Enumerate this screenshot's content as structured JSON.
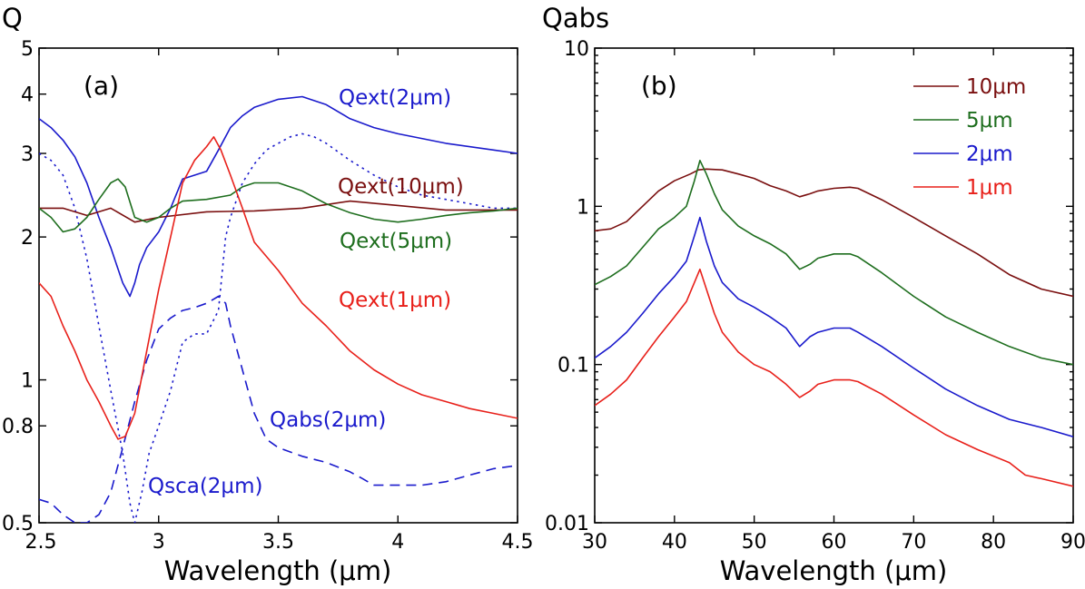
{
  "chart_data": [
    {
      "panel": "(a)",
      "type": "line",
      "ylabel": "Q",
      "xlabel": "Wavelength (μm)",
      "xlim": [
        2.5,
        4.5
      ],
      "ylim": [
        0.5,
        5
      ],
      "yscale": "log",
      "x_ticks": [
        2.5,
        3,
        3.5,
        4,
        4.5
      ],
      "x_tick_labels": [
        "2.5",
        "3",
        "3.5",
        "4",
        "4.5"
      ],
      "y_ticks": [
        0.5,
        0.8,
        1,
        2,
        3,
        4,
        5
      ],
      "y_tick_labels": [
        "0.5",
        "0.8",
        "1",
        "2",
        "3",
        "4",
        "5"
      ],
      "series": [
        {
          "name": "Qext(2μm)",
          "color": "#1a1acc",
          "dash": "solid",
          "x": [
            2.5,
            2.55,
            2.6,
            2.65,
            2.7,
            2.75,
            2.8,
            2.85,
            2.88,
            2.9,
            2.92,
            2.95,
            3.0,
            3.05,
            3.1,
            3.15,
            3.2,
            3.25,
            3.3,
            3.35,
            3.4,
            3.5,
            3.6,
            3.7,
            3.8,
            3.9,
            4.0,
            4.2,
            4.4,
            4.5
          ],
          "y": [
            3.55,
            3.4,
            3.2,
            2.95,
            2.6,
            2.2,
            1.9,
            1.6,
            1.5,
            1.6,
            1.75,
            1.9,
            2.05,
            2.3,
            2.65,
            2.7,
            2.75,
            3.05,
            3.4,
            3.6,
            3.75,
            3.9,
            3.95,
            3.8,
            3.55,
            3.4,
            3.3,
            3.15,
            3.05,
            3.0
          ]
        },
        {
          "name": "Qsca(2μm)",
          "color": "#1a1acc",
          "dash": "dotted",
          "x": [
            2.5,
            2.55,
            2.6,
            2.65,
            2.7,
            2.75,
            2.8,
            2.85,
            2.88,
            2.9,
            2.93,
            2.96,
            3.0,
            3.05,
            3.1,
            3.15,
            3.2,
            3.25,
            3.28,
            3.3,
            3.35,
            3.4,
            3.45,
            3.5,
            3.55,
            3.6,
            3.65,
            3.7,
            3.8,
            3.9,
            4.0,
            4.1,
            4.2,
            4.3,
            4.4,
            4.5
          ],
          "y": [
            3.0,
            2.9,
            2.7,
            2.3,
            1.8,
            1.3,
            0.95,
            0.7,
            0.55,
            0.5,
            0.58,
            0.7,
            0.8,
            0.95,
            1.2,
            1.25,
            1.25,
            1.4,
            2.0,
            2.2,
            2.6,
            2.85,
            3.05,
            3.15,
            3.25,
            3.3,
            3.25,
            3.15,
            2.9,
            2.7,
            2.55,
            2.45,
            2.4,
            2.35,
            2.3,
            2.3
          ]
        },
        {
          "name": "Qabs(2μm)",
          "color": "#1a1acc",
          "dash": "dashed",
          "x": [
            2.5,
            2.55,
            2.6,
            2.65,
            2.7,
            2.75,
            2.8,
            2.85,
            2.9,
            2.95,
            3.0,
            3.05,
            3.1,
            3.15,
            3.2,
            3.25,
            3.28,
            3.3,
            3.35,
            3.4,
            3.45,
            3.5,
            3.6,
            3.7,
            3.8,
            3.85,
            3.9,
            4.0,
            4.1,
            4.2,
            4.3,
            4.4,
            4.5
          ],
          "y": [
            0.56,
            0.55,
            0.52,
            0.5,
            0.5,
            0.52,
            0.58,
            0.72,
            0.9,
            1.1,
            1.28,
            1.35,
            1.4,
            1.42,
            1.45,
            1.5,
            1.45,
            1.3,
            1.05,
            0.85,
            0.75,
            0.72,
            0.69,
            0.67,
            0.64,
            0.62,
            0.6,
            0.6,
            0.6,
            0.61,
            0.63,
            0.65,
            0.66
          ]
        },
        {
          "name": "Qext(10μm)",
          "color": "#7a0f0f",
          "dash": "solid",
          "x": [
            2.5,
            2.6,
            2.7,
            2.8,
            2.9,
            3.0,
            3.2,
            3.4,
            3.6,
            3.8,
            4.0,
            4.2,
            4.5
          ],
          "y": [
            2.3,
            2.3,
            2.22,
            2.3,
            2.15,
            2.2,
            2.26,
            2.27,
            2.3,
            2.38,
            2.33,
            2.28,
            2.28
          ]
        },
        {
          "name": "Qext(5μm)",
          "color": "#1e6e1e",
          "dash": "solid",
          "x": [
            2.5,
            2.55,
            2.6,
            2.65,
            2.7,
            2.75,
            2.8,
            2.83,
            2.86,
            2.9,
            2.95,
            3.0,
            3.05,
            3.1,
            3.2,
            3.3,
            3.35,
            3.4,
            3.5,
            3.6,
            3.7,
            3.8,
            3.9,
            4.0,
            4.1,
            4.2,
            4.3,
            4.4,
            4.5
          ],
          "y": [
            2.3,
            2.2,
            2.05,
            2.08,
            2.2,
            2.4,
            2.6,
            2.65,
            2.55,
            2.2,
            2.15,
            2.2,
            2.3,
            2.38,
            2.4,
            2.45,
            2.55,
            2.6,
            2.6,
            2.5,
            2.35,
            2.25,
            2.18,
            2.15,
            2.18,
            2.22,
            2.25,
            2.27,
            2.3
          ]
        },
        {
          "name": "Qext(1μm)",
          "color": "#e8201a",
          "dash": "solid",
          "x": [
            2.5,
            2.55,
            2.6,
            2.65,
            2.7,
            2.75,
            2.8,
            2.83,
            2.86,
            2.9,
            2.95,
            3.0,
            3.05,
            3.1,
            3.15,
            3.2,
            3.23,
            3.26,
            3.3,
            3.35,
            3.4,
            3.5,
            3.6,
            3.7,
            3.8,
            3.9,
            4.0,
            4.1,
            4.2,
            4.3,
            4.4,
            4.5
          ],
          "y": [
            1.6,
            1.5,
            1.3,
            1.15,
            1.0,
            0.9,
            0.8,
            0.75,
            0.76,
            0.85,
            1.15,
            1.55,
            2.0,
            2.6,
            2.9,
            3.1,
            3.25,
            3.05,
            2.7,
            2.3,
            1.95,
            1.7,
            1.45,
            1.3,
            1.15,
            1.05,
            0.98,
            0.93,
            0.9,
            0.87,
            0.85,
            0.83
          ]
        }
      ],
      "annotations": [
        {
          "text": "Qext(2μm)",
          "color": "#1a1acc"
        },
        {
          "text": "Qext(10μm)",
          "color": "#7a0f0f"
        },
        {
          "text": "Qext(5μm)",
          "color": "#1e6e1e"
        },
        {
          "text": "Qext(1μm)",
          "color": "#e8201a"
        },
        {
          "text": "Qabs(2μm)",
          "color": "#1a1acc"
        },
        {
          "text": "Qsca(2μm)",
          "color": "#1a1acc"
        }
      ]
    },
    {
      "panel": "(b)",
      "type": "line",
      "ylabel": "Qabs",
      "xlabel": "Wavelength (μm)",
      "xlim": [
        30,
        90
      ],
      "ylim": [
        0.01,
        10
      ],
      "yscale": "log",
      "x_ticks": [
        30,
        40,
        50,
        60,
        70,
        80,
        90
      ],
      "x_tick_labels": [
        "30",
        "40",
        "50",
        "60",
        "70",
        "80",
        "90"
      ],
      "y_ticks": [
        0.01,
        0.1,
        1,
        10
      ],
      "y_tick_labels": [
        "0.01",
        "0.1",
        "1",
        "10"
      ],
      "legend_position": "top-right",
      "series": [
        {
          "name": "10μm",
          "color": "#7a0f0f",
          "x": [
            30,
            32,
            34,
            36,
            38,
            40,
            42,
            43,
            44,
            46,
            48,
            50,
            52,
            54,
            55.7,
            57,
            58,
            60,
            62,
            63,
            66,
            70,
            74,
            78,
            82,
            86,
            90
          ],
          "y": [
            0.7,
            0.72,
            0.8,
            1.0,
            1.25,
            1.45,
            1.6,
            1.7,
            1.72,
            1.7,
            1.6,
            1.5,
            1.35,
            1.25,
            1.15,
            1.2,
            1.25,
            1.3,
            1.32,
            1.3,
            1.1,
            0.85,
            0.65,
            0.5,
            0.37,
            0.3,
            0.27
          ]
        },
        {
          "name": "5μm",
          "color": "#1e6e1e",
          "x": [
            30,
            32,
            34,
            36,
            38,
            40,
            41.5,
            42.5,
            43.2,
            44,
            45,
            46,
            48,
            50,
            52,
            54,
            55.7,
            57,
            58,
            60,
            62,
            63,
            66,
            70,
            74,
            78,
            82,
            86,
            90
          ],
          "y": [
            0.32,
            0.36,
            0.42,
            0.55,
            0.72,
            0.85,
            1.0,
            1.45,
            1.95,
            1.6,
            1.2,
            0.95,
            0.75,
            0.65,
            0.58,
            0.5,
            0.4,
            0.43,
            0.47,
            0.5,
            0.5,
            0.48,
            0.38,
            0.27,
            0.2,
            0.16,
            0.13,
            0.11,
            0.1
          ]
        },
        {
          "name": "2μm",
          "color": "#1a1acc",
          "x": [
            30,
            32,
            34,
            36,
            38,
            40,
            41.5,
            42.5,
            43.2,
            44,
            45,
            46,
            48,
            50,
            52,
            54,
            55.7,
            57,
            58,
            60,
            62,
            63,
            66,
            70,
            74,
            78,
            82,
            86,
            90
          ],
          "y": [
            0.11,
            0.13,
            0.16,
            0.21,
            0.28,
            0.36,
            0.45,
            0.65,
            0.85,
            0.6,
            0.42,
            0.33,
            0.26,
            0.23,
            0.2,
            0.17,
            0.13,
            0.15,
            0.16,
            0.17,
            0.17,
            0.16,
            0.13,
            0.095,
            0.07,
            0.055,
            0.045,
            0.04,
            0.035
          ]
        },
        {
          "name": "1μm",
          "color": "#e8201a",
          "x": [
            30,
            32,
            34,
            36,
            38,
            40,
            41.5,
            42.5,
            43.2,
            44,
            45,
            46,
            48,
            50,
            52,
            54,
            55.7,
            57,
            58,
            60,
            62,
            63,
            66,
            70,
            74,
            78,
            82,
            84,
            86,
            90
          ],
          "y": [
            0.055,
            0.065,
            0.08,
            0.11,
            0.15,
            0.2,
            0.25,
            0.33,
            0.4,
            0.3,
            0.21,
            0.16,
            0.12,
            0.1,
            0.09,
            0.075,
            0.062,
            0.068,
            0.075,
            0.08,
            0.08,
            0.078,
            0.065,
            0.048,
            0.036,
            0.029,
            0.024,
            0.02,
            0.019,
            0.017
          ]
        }
      ]
    }
  ]
}
